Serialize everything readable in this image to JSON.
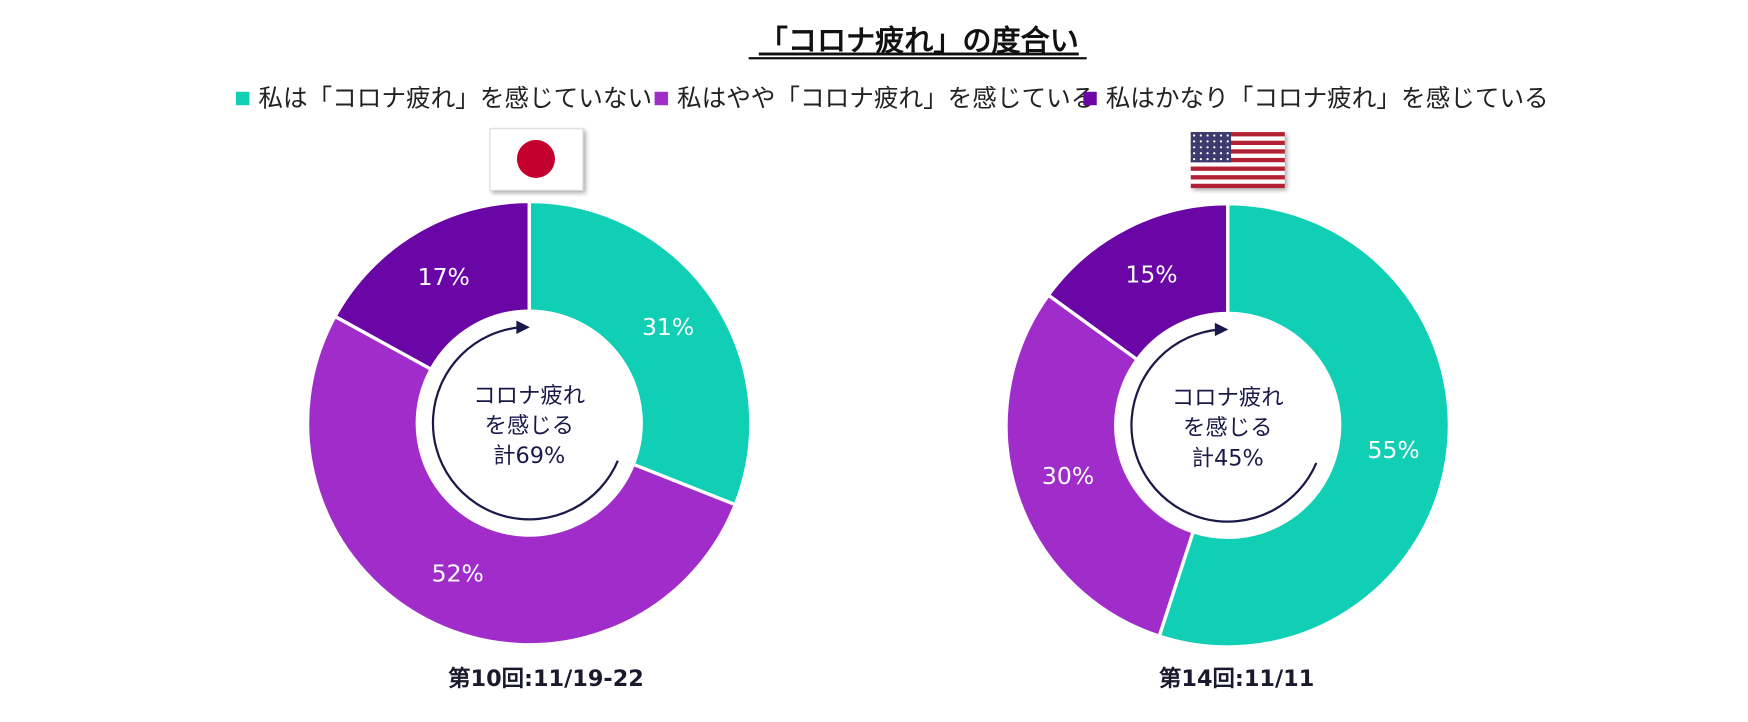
{
  "title": "「コロナ疲れ」の度合い",
  "chart_data": [
    {
      "type": "donut",
      "categories": [
        "私は「コロナ疲れ」を感じていない",
        "私はやや「コロナ疲れ」を感じている",
        "私はかなり「コロナ疲れ」を感じている"
      ],
      "values": [
        31,
        52,
        17
      ],
      "value_labels": [
        "31%",
        "52%",
        "17%"
      ],
      "colors": [
        "#10cfb5",
        "#a02cc9",
        "#6a06a6"
      ],
      "center_text": [
        "コロナ疲れ",
        "を感じる",
        "計69%"
      ],
      "caption": "第10回:11/19-22"
    },
    {
      "type": "donut",
      "categories": [
        "私は「コロナ疲れ」を感じていない",
        "私はやや「コロナ疲れ」を感じている",
        "私はかなり「コロナ疲れ」を感じている"
      ],
      "values": [
        55,
        30,
        15
      ],
      "value_labels": [
        "55%",
        "30%",
        "15%"
      ],
      "colors": [
        "#10cfb5",
        "#a02cc9",
        "#6a06a6"
      ],
      "center_text": [
        "コロナ疲れ",
        "を感じる",
        "計45%"
      ],
      "caption": "第14回:11/11"
    }
  ]
}
